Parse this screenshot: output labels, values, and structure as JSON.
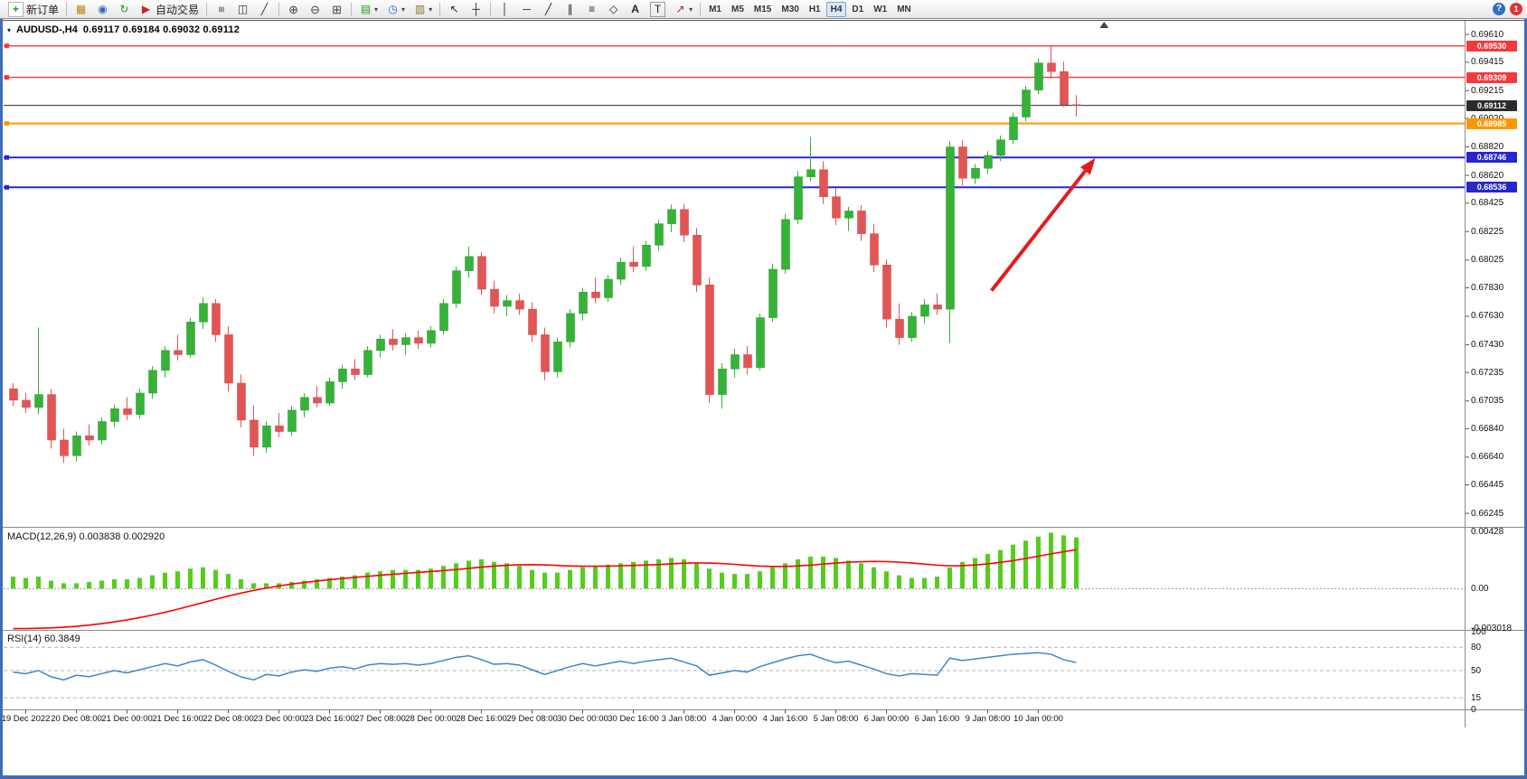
{
  "window": {
    "notification_badge": "1",
    "help_glyph": "?"
  },
  "toolbar": {
    "buttons": {
      "new_order": "新订单",
      "auto_trading": "自动交易"
    },
    "icons": {
      "new_order": "+",
      "charts": "▦",
      "profiles": "◉",
      "refresh": "↻",
      "auto_trading": "▶",
      "bars": "≡",
      "candles": "◫",
      "line_chart": "╱",
      "zoom_in": "⊕",
      "zoom_out": "⊖",
      "tile_windows": "⊞",
      "indicators": "▤",
      "periods": "◷",
      "templates": "▥",
      "cursor": "↖",
      "crosshair": "┼",
      "vline": "│",
      "hline": "─",
      "trendline": "╱",
      "channel": "∥",
      "fibonacci": "≡",
      "shapes": "◇",
      "text": "A",
      "text_label": "T",
      "arrows_tool": "↗",
      "caret": "▾"
    },
    "timeframes": [
      "M1",
      "M5",
      "M15",
      "M30",
      "H1",
      "H4",
      "D1",
      "W1",
      "MN"
    ],
    "active_timeframe": "H4"
  },
  "chart": {
    "title_symbol": "AUDUSD-,H4",
    "title_ohlc": "0.69117 0.69184 0.69032 0.69112",
    "marker_glyph": "▾"
  },
  "chart_data": [
    {
      "type": "candlestick",
      "symbol": "AUDUSD",
      "timeframe": "H4",
      "price_range": {
        "min": 0.6615,
        "max": 0.697
      },
      "colors": {
        "up": "#35b237",
        "down": "#e25555",
        "up_stroke": "#2a9a2c",
        "down_stroke": "#c94747"
      },
      "y_axis_labels": [
        "0.69610",
        "0.69415",
        "0.69215",
        "0.69020",
        "0.68820",
        "0.68620",
        "0.68425",
        "0.68225",
        "0.68025",
        "0.67830",
        "0.67630",
        "0.67430",
        "0.67235",
        "0.67035",
        "0.66840",
        "0.66640",
        "0.66445",
        "0.66245"
      ],
      "x_axis_labels": [
        "19 Dec 2022",
        "20 Dec 08:00",
        "21 Dec 00:00",
        "21 Dec 16:00",
        "22 Dec 08:00",
        "23 Dec 00:00",
        "23 Dec 16:00",
        "27 Dec 08:00",
        "28 Dec 00:00",
        "28 Dec 16:00",
        "29 Dec 08:00",
        "30 Dec 00:00",
        "30 Dec 16:00",
        "3 Jan 08:00",
        "4 Jan 00:00",
        "4 Jan 16:00",
        "5 Jan 08:00",
        "6 Jan 00:00",
        "6 Jan 16:00",
        "9 Jan 08:00",
        "10 Jan 00:00"
      ],
      "x_label_start_index": 1,
      "x_label_step": 4,
      "levels": [
        {
          "price": 0.6953,
          "label": "0.69530",
          "color": "#f5383b",
          "width": 1.4
        },
        {
          "price": 0.69309,
          "label": "0.69309",
          "color": "#f5383b",
          "width": 1.4
        },
        {
          "price": 0.68985,
          "label": "0.68985",
          "color": "#ff9800",
          "width": 2
        },
        {
          "price": 0.68746,
          "label": "0.68746",
          "color": "#2727cf",
          "width": 2
        },
        {
          "price": 0.68536,
          "label": "0.68536",
          "color": "#2727cf",
          "width": 2
        }
      ],
      "current_price": {
        "value": 0.69112,
        "label": "0.69112",
        "color": "#2b2b2b"
      },
      "arrow": {
        "from_index": 77.3,
        "from_price": 0.6781,
        "to_index": 85.5,
        "to_price": 0.68741,
        "color": "#e51b1b"
      },
      "shift_marker_index": 86.2,
      "candles": [
        [
          0.6712,
          0.6716,
          0.67,
          0.6704
        ],
        [
          0.6704,
          0.6709,
          0.6695,
          0.6699
        ],
        [
          0.6699,
          0.6755,
          0.6694,
          0.6708
        ],
        [
          0.6708,
          0.6712,
          0.667,
          0.6676
        ],
        [
          0.6676,
          0.6684,
          0.666,
          0.6665
        ],
        [
          0.6665,
          0.6682,
          0.6661,
          0.6679
        ],
        [
          0.6679,
          0.6687,
          0.6672,
          0.6676
        ],
        [
          0.6676,
          0.6692,
          0.6673,
          0.6689
        ],
        [
          0.6689,
          0.6701,
          0.6685,
          0.6698
        ],
        [
          0.6698,
          0.6706,
          0.669,
          0.6694
        ],
        [
          0.6694,
          0.6712,
          0.6691,
          0.6709
        ],
        [
          0.6709,
          0.6728,
          0.6705,
          0.6725
        ],
        [
          0.6725,
          0.6742,
          0.672,
          0.6739
        ],
        [
          0.6739,
          0.675,
          0.6732,
          0.6736
        ],
        [
          0.6736,
          0.6762,
          0.6734,
          0.6759
        ],
        [
          0.6759,
          0.6776,
          0.6754,
          0.6772
        ],
        [
          0.6772,
          0.6775,
          0.6745,
          0.675
        ],
        [
          0.675,
          0.6756,
          0.671,
          0.6716
        ],
        [
          0.6716,
          0.6722,
          0.6685,
          0.669
        ],
        [
          0.669,
          0.67,
          0.6665,
          0.6671
        ],
        [
          0.6671,
          0.6689,
          0.6667,
          0.6686
        ],
        [
          0.6686,
          0.6695,
          0.6678,
          0.6682
        ],
        [
          0.6682,
          0.67,
          0.6679,
          0.6697
        ],
        [
          0.6697,
          0.6709,
          0.6692,
          0.6706
        ],
        [
          0.6706,
          0.6714,
          0.6699,
          0.6702
        ],
        [
          0.6702,
          0.672,
          0.67,
          0.6717
        ],
        [
          0.6717,
          0.6729,
          0.6712,
          0.6726
        ],
        [
          0.6726,
          0.6733,
          0.6718,
          0.6722
        ],
        [
          0.6722,
          0.6742,
          0.672,
          0.6739
        ],
        [
          0.6739,
          0.675,
          0.6734,
          0.6747
        ],
        [
          0.6747,
          0.6754,
          0.6739,
          0.6743
        ],
        [
          0.6743,
          0.6751,
          0.6736,
          0.6748
        ],
        [
          0.6748,
          0.6753,
          0.674,
          0.6744
        ],
        [
          0.6744,
          0.6756,
          0.6741,
          0.6753
        ],
        [
          0.6753,
          0.6775,
          0.675,
          0.6772
        ],
        [
          0.6772,
          0.6798,
          0.6769,
          0.6795
        ],
        [
          0.6795,
          0.6812,
          0.679,
          0.6805
        ],
        [
          0.6805,
          0.6808,
          0.6778,
          0.6782
        ],
        [
          0.6782,
          0.6788,
          0.6765,
          0.677
        ],
        [
          0.677,
          0.6778,
          0.6763,
          0.6774
        ],
        [
          0.6774,
          0.6779,
          0.6764,
          0.6768
        ],
        [
          0.6768,
          0.6773,
          0.6745,
          0.675
        ],
        [
          0.675,
          0.6755,
          0.6718,
          0.6724
        ],
        [
          0.6724,
          0.6748,
          0.672,
          0.6745
        ],
        [
          0.6745,
          0.6768,
          0.6741,
          0.6765
        ],
        [
          0.6765,
          0.6783,
          0.676,
          0.678
        ],
        [
          0.678,
          0.679,
          0.6772,
          0.6776
        ],
        [
          0.6776,
          0.6792,
          0.6773,
          0.6789
        ],
        [
          0.6789,
          0.6804,
          0.6785,
          0.6801
        ],
        [
          0.6801,
          0.6812,
          0.6794,
          0.6798
        ],
        [
          0.6798,
          0.6816,
          0.6795,
          0.6813
        ],
        [
          0.6813,
          0.6831,
          0.6809,
          0.6828
        ],
        [
          0.6828,
          0.68414,
          0.6822,
          0.6838
        ],
        [
          0.6838,
          0.6842,
          0.6815,
          0.682
        ],
        [
          0.682,
          0.6825,
          0.678,
          0.6785
        ],
        [
          0.6785,
          0.679,
          0.6702,
          0.6708
        ],
        [
          0.6708,
          0.673,
          0.6698,
          0.6726
        ],
        [
          0.6726,
          0.674,
          0.672,
          0.6736
        ],
        [
          0.6736,
          0.6742,
          0.6722,
          0.6727
        ],
        [
          0.6727,
          0.6765,
          0.6725,
          0.6762
        ],
        [
          0.6762,
          0.68,
          0.6759,
          0.6796
        ],
        [
          0.6796,
          0.6835,
          0.6793,
          0.6831
        ],
        [
          0.6831,
          0.6865,
          0.6828,
          0.6861
        ],
        [
          0.6861,
          0.6889,
          0.6858,
          0.6866
        ],
        [
          0.6866,
          0.6872,
          0.6842,
          0.6847
        ],
        [
          0.6847,
          0.6853,
          0.6827,
          0.6832
        ],
        [
          0.6832,
          0.684,
          0.6823,
          0.6837
        ],
        [
          0.6837,
          0.6841,
          0.6816,
          0.6821
        ],
        [
          0.6821,
          0.6828,
          0.6794,
          0.6799
        ],
        [
          0.6799,
          0.6803,
          0.6755,
          0.6761
        ],
        [
          0.6761,
          0.6772,
          0.6743,
          0.6748
        ],
        [
          0.6748,
          0.6766,
          0.6745,
          0.6763
        ],
        [
          0.6763,
          0.6775,
          0.6758,
          0.6771
        ],
        [
          0.6771,
          0.6779,
          0.6764,
          0.6768
        ],
        [
          0.6768,
          0.6886,
          0.6744,
          0.6882
        ],
        [
          0.6882,
          0.6887,
          0.6855,
          0.686
        ],
        [
          0.686,
          0.687,
          0.6856,
          0.6867
        ],
        [
          0.6867,
          0.6879,
          0.6863,
          0.6876
        ],
        [
          0.6876,
          0.689,
          0.6872,
          0.6887
        ],
        [
          0.6887,
          0.6906,
          0.6884,
          0.6903
        ],
        [
          0.6903,
          0.6925,
          0.69,
          0.6922
        ],
        [
          0.6922,
          0.6944,
          0.6919,
          0.6941
        ],
        [
          0.6941,
          0.6953,
          0.693,
          0.6935
        ],
        [
          0.6935,
          0.6942,
          0.691,
          0.69117
        ],
        [
          0.69117,
          0.69184,
          0.69032,
          0.69112
        ]
      ]
    },
    {
      "type": "macd",
      "name": "MACD",
      "label": "MACD(12,26,9) 0.003838 0.002920",
      "current_values": {
        "macd": 0.003838,
        "signal": 0.00292
      },
      "range": {
        "min": -0.0031,
        "max": 0.0045
      },
      "histogram_color": "#55cd1e",
      "signal_color": "#ff0000",
      "y_axis": [
        {
          "label": "0.00428",
          "value": 0.00428
        },
        {
          "label": "0.00",
          "value": 0
        },
        {
          "label": "-0.003018",
          "value": -0.003018
        }
      ],
      "histogram": [
        0.0009,
        0.0008,
        0.0009,
        0.0006,
        0.0004,
        0.0004,
        0.0005,
        0.0006,
        0.0007,
        0.0007,
        0.0008,
        0.001,
        0.0012,
        0.0013,
        0.0015,
        0.0016,
        0.0014,
        0.0011,
        0.0007,
        0.0004,
        0.0004,
        0.0004,
        0.0005,
        0.0006,
        0.0007,
        0.0008,
        0.0009,
        0.001,
        0.0012,
        0.0013,
        0.0014,
        0.0014,
        0.0014,
        0.0015,
        0.0017,
        0.0019,
        0.0021,
        0.0022,
        0.002,
        0.0019,
        0.0017,
        0.0014,
        0.0012,
        0.0012,
        0.0014,
        0.0016,
        0.0017,
        0.0018,
        0.0019,
        0.002,
        0.0021,
        0.0022,
        0.0023,
        0.0022,
        0.0019,
        0.0015,
        0.0012,
        0.0011,
        0.0011,
        0.0013,
        0.0016,
        0.0019,
        0.0022,
        0.0024,
        0.0024,
        0.0023,
        0.0021,
        0.0019,
        0.0016,
        0.0013,
        0.001,
        0.0008,
        0.0008,
        0.0009,
        0.0016,
        0.002,
        0.0023,
        0.0026,
        0.0029,
        0.0033,
        0.0036,
        0.0039,
        0.0042,
        0.004,
        0.003838
      ],
      "signal": [
        -0.003,
        -0.003,
        -0.00298,
        -0.00295,
        -0.0029,
        -0.00283,
        -0.00274,
        -0.00263,
        -0.0025,
        -0.00235,
        -0.00218,
        -0.00199,
        -0.00178,
        -0.00155,
        -0.0013,
        -0.00105,
        -0.0008,
        -0.00056,
        -0.00034,
        -0.00014,
        4e-05,
        0.0002,
        0.00034,
        0.00046,
        0.00057,
        0.00067,
        0.00076,
        0.00084,
        0.00092,
        0.001,
        0.00108,
        0.00115,
        0.00122,
        0.00128,
        0.00135,
        0.00143,
        0.00152,
        0.00161,
        0.00169,
        0.00175,
        0.00179,
        0.0018,
        0.00178,
        0.00174,
        0.0017,
        0.00168,
        0.00168,
        0.00169,
        0.00171,
        0.00174,
        0.00177,
        0.00181,
        0.00186,
        0.00191,
        0.00193,
        0.00192,
        0.00188,
        0.00182,
        0.00175,
        0.00169,
        0.00166,
        0.00166,
        0.0017,
        0.00176,
        0.00184,
        0.00192,
        0.00198,
        0.00202,
        0.00204,
        0.00203,
        0.00199,
        0.00192,
        0.00184,
        0.00176,
        0.00171,
        0.00172,
        0.00177,
        0.00186,
        0.00197,
        0.0021,
        0.00226,
        0.00243,
        0.00261,
        0.00277,
        0.00292
      ]
    },
    {
      "type": "line",
      "name": "RSI",
      "label": "RSI(14) 60.3849",
      "current_value": 60.3849,
      "range": {
        "min": 0,
        "max": 100
      },
      "levels": [
        80,
        50,
        15
      ],
      "line_color": "#3f87c9",
      "y_axis": [
        {
          "label": "100",
          "value": 100
        },
        {
          "label": "80",
          "value": 80
        },
        {
          "label": "50",
          "value": 50
        },
        {
          "label": "15",
          "value": 15
        },
        {
          "label": "0",
          "value": 0
        }
      ],
      "values": [
        48,
        46,
        50,
        42,
        38,
        44,
        42,
        46,
        50,
        47,
        51,
        55,
        59,
        56,
        61,
        64,
        57,
        49,
        42,
        38,
        45,
        43,
        48,
        51,
        49,
        53,
        55,
        52,
        57,
        59,
        58,
        59,
        57,
        59,
        63,
        67,
        69,
        64,
        58,
        59,
        57,
        51,
        45,
        50,
        55,
        59,
        56,
        59,
        62,
        59,
        62,
        64,
        66,
        61,
        56,
        44,
        47,
        50,
        48,
        55,
        60,
        65,
        69,
        71,
        65,
        60,
        62,
        57,
        52,
        46,
        43,
        46,
        45,
        44,
        66,
        63,
        65,
        67,
        69,
        71,
        72,
        73,
        71,
        64,
        60.4
      ]
    }
  ]
}
